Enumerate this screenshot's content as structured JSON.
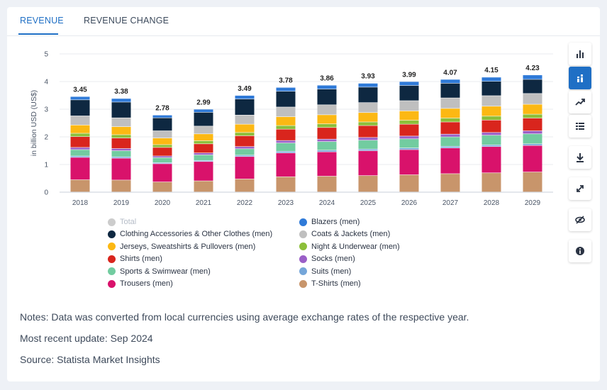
{
  "tabs": [
    {
      "label": "REVENUE",
      "active": true
    },
    {
      "label": "REVENUE CHANGE",
      "active": false
    }
  ],
  "toolbar": [
    "bar-chart-icon",
    "stacked-bar-icon",
    "trend-line-icon",
    "table-icon",
    "download-icon",
    "expand-icon",
    "hide-icon",
    "info-icon"
  ],
  "notes": {
    "line1": "Notes: Data was converted from local currencies using average exchange rates of the respective year.",
    "line2": "Most recent update: Sep 2024",
    "line3": "Source: Statista Market Insights"
  },
  "chart_data": {
    "type": "bar",
    "stacked": true,
    "title": "",
    "xlabel": "",
    "ylabel": "in billion USD (US$)",
    "ylim": [
      0,
      5
    ],
    "yticks": [
      "0",
      "1",
      "2",
      "3",
      "4",
      "5"
    ],
    "grid": true,
    "legend_position": "bottom",
    "categories": [
      "2018",
      "2019",
      "2020",
      "2021",
      "2022",
      "2023",
      "2024",
      "2025",
      "2026",
      "2027",
      "2028",
      "2029"
    ],
    "totals": [
      3.45,
      3.38,
      2.78,
      2.99,
      3.49,
      3.78,
      3.86,
      3.93,
      3.99,
      4.07,
      4.15,
      4.23
    ],
    "total_labels": [
      "3.45",
      "3.38",
      "2.78",
      "2.99",
      "3.49",
      "3.78",
      "3.86",
      "3.93",
      "3.99",
      "4.07",
      "4.15",
      "4.23"
    ],
    "total_series": {
      "name": "Total",
      "color": "#cccccc",
      "hidden": true
    },
    "series": [
      {
        "name": "T-Shirts (men)",
        "color": "#c8956b",
        "values": [
          0.44,
          0.43,
          0.36,
          0.4,
          0.47,
          0.55,
          0.57,
          0.59,
          0.62,
          0.66,
          0.69,
          0.72
        ]
      },
      {
        "name": "Trousers (men)",
        "color": "#d9126b",
        "values": [
          0.81,
          0.79,
          0.66,
          0.7,
          0.81,
          0.86,
          0.88,
          0.9,
          0.91,
          0.93,
          0.95,
          0.96
        ]
      },
      {
        "name": "Suits (men)",
        "color": "#75a6d9",
        "values": [
          0.05,
          0.05,
          0.04,
          0.04,
          0.05,
          0.06,
          0.06,
          0.06,
          0.06,
          0.06,
          0.06,
          0.06
        ]
      },
      {
        "name": "Sports & Swimwear (men)",
        "color": "#72cca0",
        "values": [
          0.23,
          0.22,
          0.18,
          0.2,
          0.23,
          0.3,
          0.31,
          0.32,
          0.33,
          0.34,
          0.35,
          0.36
        ]
      },
      {
        "name": "Socks (men)",
        "color": "#9a5fc7",
        "values": [
          0.08,
          0.08,
          0.06,
          0.07,
          0.08,
          0.09,
          0.09,
          0.1,
          0.1,
          0.1,
          0.1,
          0.11
        ]
      },
      {
        "name": "Shirts (men)",
        "color": "#d9251d",
        "values": [
          0.39,
          0.38,
          0.31,
          0.33,
          0.39,
          0.41,
          0.42,
          0.43,
          0.43,
          0.44,
          0.45,
          0.46
        ]
      },
      {
        "name": "Night & Underwear (men)",
        "color": "#8cbf3a",
        "values": [
          0.12,
          0.12,
          0.1,
          0.11,
          0.12,
          0.13,
          0.13,
          0.13,
          0.14,
          0.14,
          0.14,
          0.14
        ]
      },
      {
        "name": "Jerseys, Sweatshirts & Pullovers (men)",
        "color": "#fcb813",
        "values": [
          0.3,
          0.29,
          0.24,
          0.25,
          0.3,
          0.32,
          0.33,
          0.34,
          0.34,
          0.35,
          0.36,
          0.36
        ]
      },
      {
        "name": "Coats & Jackets (men)",
        "color": "#bfbfbf",
        "values": [
          0.33,
          0.32,
          0.26,
          0.28,
          0.33,
          0.35,
          0.36,
          0.36,
          0.37,
          0.38,
          0.38,
          0.39
        ]
      },
      {
        "name": "Clothing Accessories & Other Clothes (men)",
        "color": "#0e2841",
        "values": [
          0.58,
          0.57,
          0.47,
          0.5,
          0.58,
          0.57,
          0.57,
          0.56,
          0.55,
          0.53,
          0.52,
          0.51
        ]
      },
      {
        "name": "Blazers (men)",
        "color": "#2f7ad8",
        "values": [
          0.12,
          0.13,
          0.1,
          0.11,
          0.13,
          0.14,
          0.14,
          0.14,
          0.14,
          0.14,
          0.15,
          0.16
        ]
      }
    ],
    "legend": [
      {
        "name": "Total",
        "color": "#cccccc",
        "muted": true
      },
      {
        "name": "Blazers (men)",
        "color": "#2f7ad8"
      },
      {
        "name": "Clothing Accessories & Other Clothes (men)",
        "color": "#0e2841"
      },
      {
        "name": "Coats & Jackets (men)",
        "color": "#bfbfbf"
      },
      {
        "name": "Jerseys, Sweatshirts & Pullovers (men)",
        "color": "#fcb813"
      },
      {
        "name": "Night & Underwear (men)",
        "color": "#8cbf3a"
      },
      {
        "name": "Shirts (men)",
        "color": "#d9251d"
      },
      {
        "name": "Socks (men)",
        "color": "#9a5fc7"
      },
      {
        "name": "Sports & Swimwear (men)",
        "color": "#72cca0"
      },
      {
        "name": "Suits (men)",
        "color": "#75a6d9"
      },
      {
        "name": "Trousers (men)",
        "color": "#d9126b"
      },
      {
        "name": "T-Shirts (men)",
        "color": "#c8956b"
      }
    ]
  }
}
